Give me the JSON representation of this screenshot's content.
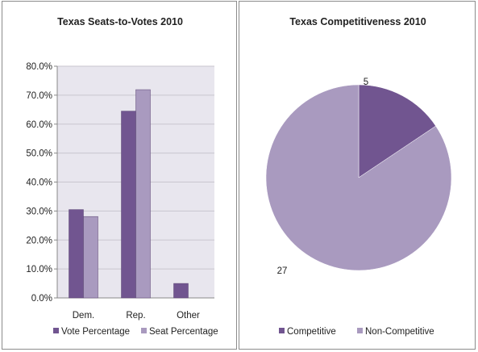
{
  "colors": {
    "primary": "#715590",
    "secondary": "#a99abf",
    "plot_bg": "#e8e6ee",
    "grid": "#c9c6cf"
  },
  "chart_data": [
    {
      "type": "bar",
      "title": "Texas Seats-to-Votes 2010",
      "categories": [
        "Dem.",
        "Rep.",
        "Other"
      ],
      "series": [
        {
          "name": "Vote Percentage",
          "values": [
            30.5,
            64.5,
            5.0
          ]
        },
        {
          "name": "Seat Percentage",
          "values": [
            28.1,
            71.9,
            0
          ]
        }
      ],
      "ylim": [
        0,
        80
      ],
      "yticks": [
        "0.0%",
        "10.0%",
        "20.0%",
        "30.0%",
        "40.0%",
        "50.0%",
        "60.0%",
        "70.0%",
        "80.0%"
      ],
      "grid": true,
      "legend_position": "bottom"
    },
    {
      "type": "pie",
      "title": "Texas Competitiveness 2010",
      "slices": [
        {
          "name": "Competitive",
          "value": 5,
          "label": "5"
        },
        {
          "name": "Non-Competitive",
          "value": 27,
          "label": "27"
        }
      ],
      "legend_position": "bottom"
    }
  ]
}
